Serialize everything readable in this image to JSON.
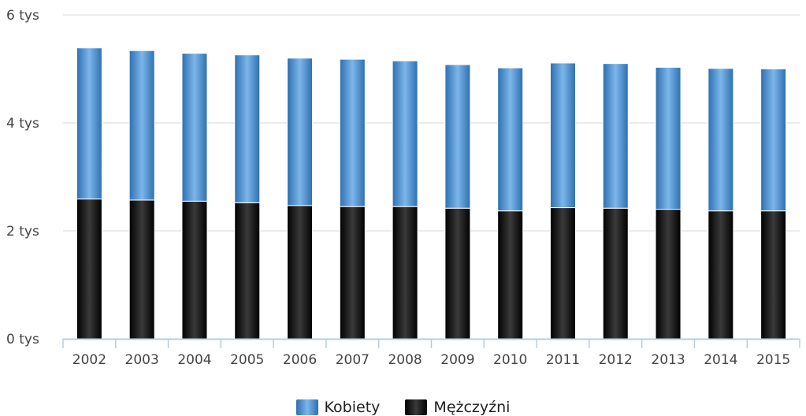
{
  "chart_data": {
    "type": "bar",
    "stacked": true,
    "categories": [
      "2002",
      "2003",
      "2004",
      "2005",
      "2006",
      "2007",
      "2008",
      "2009",
      "2010",
      "2011",
      "2012",
      "2013",
      "2014",
      "2015"
    ],
    "series": [
      {
        "name": "Mężczyźni",
        "values": [
          2590,
          2570,
          2550,
          2520,
          2470,
          2450,
          2450,
          2420,
          2370,
          2430,
          2420,
          2400,
          2370,
          2370
        ]
      },
      {
        "name": "Kobiety",
        "values": [
          2800,
          2770,
          2740,
          2740,
          2730,
          2730,
          2700,
          2660,
          2650,
          2680,
          2680,
          2630,
          2640,
          2630
        ]
      }
    ],
    "y_ticks": [
      {
        "value": 0,
        "label": "0 tys"
      },
      {
        "value": 2000,
        "label": "2 tys"
      },
      {
        "value": 4000,
        "label": "4 tys"
      },
      {
        "value": 6000,
        "label": "6 tys"
      }
    ],
    "ylim": [
      0,
      6000
    ],
    "title": "",
    "xlabel": "",
    "ylabel": "",
    "grid": true,
    "legend_position": "bottom-center",
    "colors": {
      "Kobiety": "#4a8fd2",
      "Mężczyźni": "#1a1a1a",
      "axis": "#b8cde3",
      "grid": "#d8d8d8"
    }
  },
  "legend": {
    "kobiety": "Kobiety",
    "mezczyzni": "Mężczyźni"
  }
}
